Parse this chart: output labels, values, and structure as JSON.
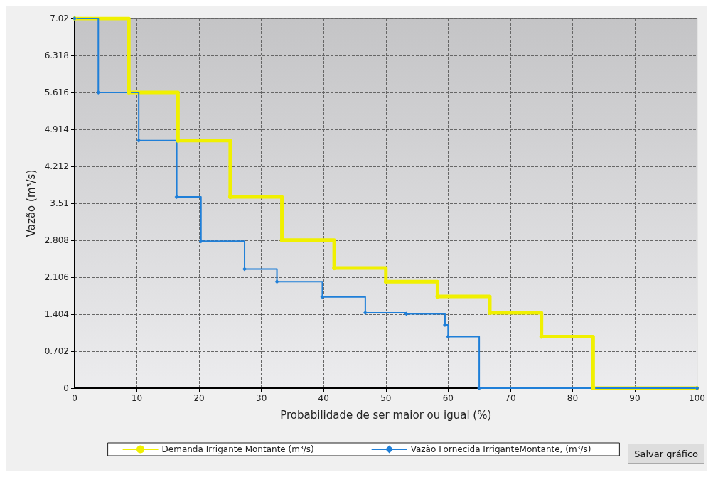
{
  "chart_data": {
    "type": "step",
    "xlabel": "Probabilidade de ser maior ou igual (%)",
    "ylabel": "Vazão (m³/s)",
    "xlim": [
      0,
      100
    ],
    "xticks": [
      0,
      10,
      20,
      30,
      40,
      50,
      60,
      70,
      80,
      90,
      100
    ],
    "ylim": [
      0,
      7.02
    ],
    "yticks": [
      0,
      0.702,
      1.404,
      2.106,
      2.808,
      3.51,
      4.212,
      4.914,
      5.616,
      6.318,
      7.02
    ],
    "grid": true,
    "legend": "bottom",
    "annotations": [
      "Salvar gráfico"
    ],
    "series": [
      {
        "name": "Demanda Irrigante Montante (m³/s)",
        "color": "#f0f000",
        "marker": "circle",
        "x": [
          0,
          8.7,
          16.6,
          25,
          33.3,
          41.7,
          50,
          58.3,
          66.7,
          75,
          83.3,
          100
        ],
        "values": [
          7.02,
          5.616,
          4.7,
          3.63,
          2.81,
          2.28,
          2.02,
          1.74,
          1.43,
          0.98,
          0,
          0
        ]
      },
      {
        "name": "Vazão Fornecida IrriganteMontante, (m³/s)",
        "color": "#1f7fd8",
        "marker": "diamond",
        "x": [
          0,
          3.8,
          10.3,
          16.4,
          20.3,
          27.3,
          32.5,
          39.8,
          46.7,
          53.3,
          59.5,
          60,
          65,
          100
        ],
        "values": [
          7.02,
          5.616,
          4.7,
          3.63,
          2.79,
          2.26,
          2.02,
          1.73,
          1.43,
          1.41,
          1.2,
          0.98,
          0,
          0
        ]
      }
    ]
  }
}
